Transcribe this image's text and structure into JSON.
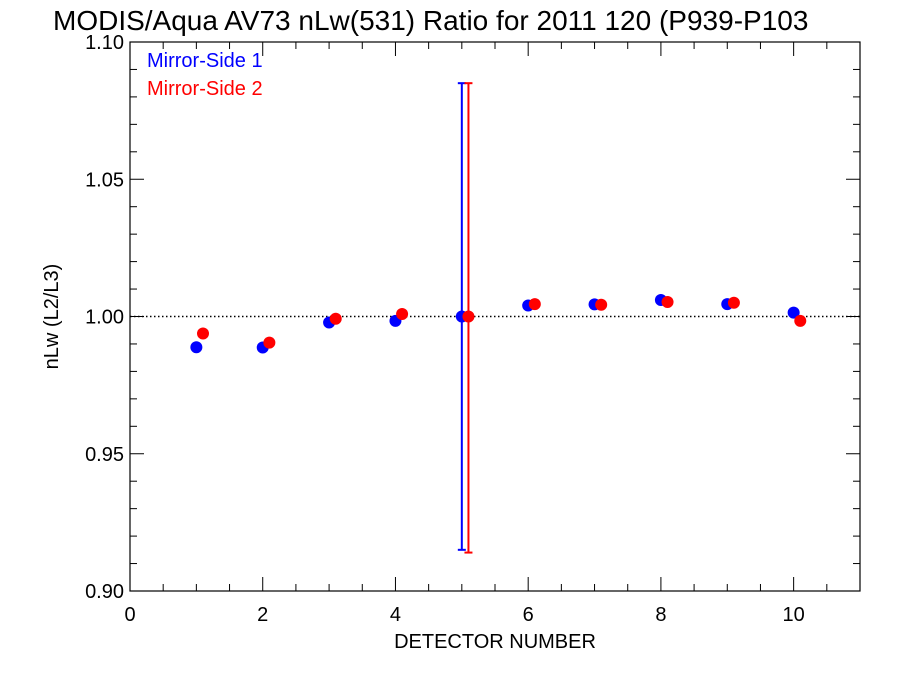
{
  "chart_data": {
    "type": "scatter",
    "title": "MODIS/Aqua AV73 nLw(531) Ratio for 2011 120 (P939-P103",
    "xlabel": "DETECTOR NUMBER",
    "ylabel": "nLw (L2/L3)",
    "xlim": [
      0,
      11
    ],
    "ylim": [
      0.9,
      1.1
    ],
    "xticks": [
      0,
      2,
      4,
      6,
      8,
      10
    ],
    "xtick_labels": [
      "0",
      "2",
      "4",
      "6",
      "8",
      "10"
    ],
    "yticks": [
      0.9,
      0.95,
      1.0,
      1.05,
      1.1
    ],
    "ytick_labels": [
      "0.90",
      "0.95",
      "1.00",
      "1.05",
      "1.10"
    ],
    "reference_line": 1.0,
    "legend_position": "top-left",
    "series": [
      {
        "name": "Mirror-Side 1",
        "color": "#0000ff",
        "x": [
          1,
          2,
          3,
          4,
          5,
          6,
          7,
          8,
          9,
          10
        ],
        "y": [
          0.9888,
          0.9887,
          0.9978,
          0.9984,
          1.0,
          1.004,
          1.0044,
          1.006,
          1.0045,
          1.0014
        ],
        "error_bar": {
          "x": 5,
          "low": 0.915,
          "high": 1.085
        }
      },
      {
        "name": "Mirror-Side 2",
        "color": "#ff0000",
        "x": [
          1.1,
          2.1,
          3.1,
          4.1,
          5.1,
          6.1,
          7.1,
          8.1,
          9.1,
          10.1
        ],
        "y": [
          0.9938,
          0.9905,
          0.9992,
          1.0009,
          1.0,
          1.0045,
          1.0043,
          1.0053,
          1.005,
          0.9984
        ],
        "error_bar": {
          "x": 5.1,
          "low": 0.914,
          "high": 1.085
        }
      }
    ]
  }
}
